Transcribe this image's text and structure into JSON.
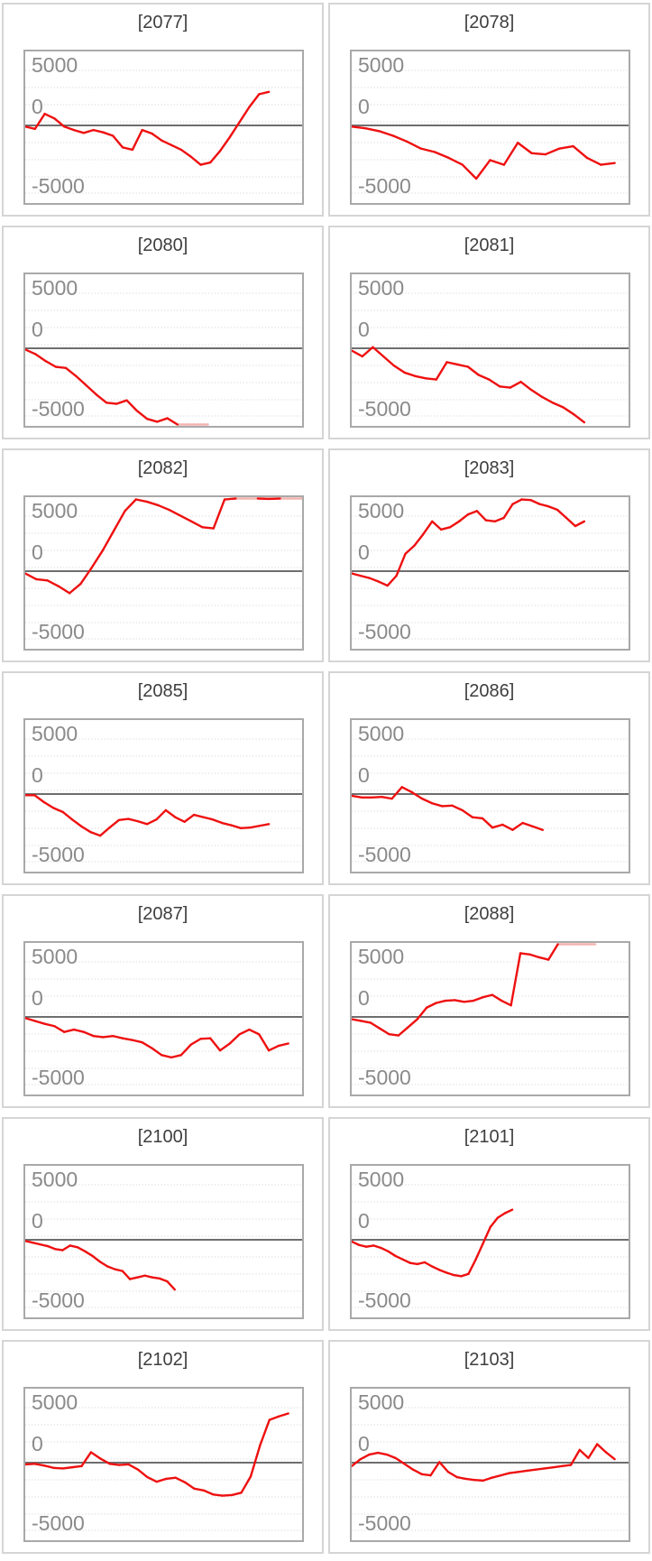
{
  "axis": {
    "tick_labels": [
      "5000",
      "0",
      "-5000"
    ],
    "tick_values": [
      5000,
      0,
      -5000
    ],
    "ylim": [
      -6536,
      6396
    ],
    "gridline_step": 2500,
    "x_axis_labels": "none",
    "legend": "none",
    "grid": true
  },
  "colors": {
    "line": "#ee1010",
    "line_clipped": "#f3b4b1",
    "zero_line": "#6e6e6e",
    "gridline": "#dadada",
    "tick_label": "#8a8a8a",
    "title": "#3e3e3e",
    "panel_border": "#d5d5d5",
    "plot_border": "#a9a9a9",
    "background": "#ffffff"
  },
  "chart_data": [
    {
      "type": "line",
      "title": "[2077]",
      "end_fraction": 0.88,
      "values": [
        -100,
        -300,
        1000,
        600,
        -100,
        -400,
        -650,
        -400,
        -600,
        -900,
        -1900,
        -2100,
        -400,
        -700,
        -1300,
        -1700,
        -2100,
        -2700,
        -3400,
        -3200,
        -2200,
        -1000,
        300,
        1600,
        2700,
        2900
      ]
    },
    {
      "type": "line",
      "title": "[2078]",
      "end_fraction": 0.95,
      "values": [
        -100,
        -250,
        -500,
        -900,
        -1400,
        -2000,
        -2300,
        -2800,
        -3400,
        -4600,
        -3000,
        -3400,
        -1500,
        -2400,
        -2500,
        -2000,
        -1800,
        -2800,
        -3400,
        -3250
      ]
    },
    {
      "type": "line",
      "title": "[2080]",
      "end_fraction": 0.66,
      "values": [
        -100,
        -500,
        -1100,
        -1600,
        -1700,
        -2400,
        -3200,
        -4000,
        -4700,
        -4800,
        -4500,
        -5400,
        -6100,
        -6350,
        -6050,
        -6700,
        -6900,
        -6900,
        -6900
      ]
    },
    {
      "type": "line",
      "title": "[2081]",
      "end_fraction": 0.84,
      "values": [
        -200,
        -700,
        100,
        -700,
        -1500,
        -2100,
        -2400,
        -2600,
        -2700,
        -1200,
        -1400,
        -1600,
        -2300,
        -2700,
        -3300,
        -3400,
        -2900,
        -3600,
        -4200,
        -4700,
        -5100,
        -5700,
        -6400
      ]
    },
    {
      "type": "line",
      "title": "[2082]",
      "end_fraction": 1.0,
      "values": [
        -200,
        -700,
        -800,
        -1300,
        -1900,
        -1100,
        300,
        1800,
        3500,
        5200,
        6200,
        6000,
        5700,
        5300,
        4800,
        4300,
        3800,
        3700,
        6200,
        6900,
        6900,
        6900,
        6250,
        6900,
        6900,
        6900
      ]
    },
    {
      "type": "line",
      "title": "[2083]",
      "end_fraction": 0.84,
      "values": [
        -200,
        -400,
        -600,
        -900,
        -1250,
        -400,
        1500,
        2200,
        3200,
        4300,
        3600,
        3800,
        4300,
        4900,
        5200,
        4400,
        4300,
        4600,
        5800,
        6200,
        6150,
        5800,
        5600,
        5300,
        4600,
        3900,
        4300
      ]
    },
    {
      "type": "line",
      "title": "[2085]",
      "end_fraction": 0.88,
      "values": [
        -100,
        -100,
        -700,
        -1200,
        -1550,
        -2200,
        -2800,
        -3300,
        -3600,
        -2900,
        -2250,
        -2150,
        -2350,
        -2600,
        -2200,
        -1400,
        -2000,
        -2400,
        -1800,
        -2000,
        -2200,
        -2500,
        -2700,
        -2950,
        -2900,
        -2750,
        -2600
      ]
    },
    {
      "type": "line",
      "title": "[2086]",
      "end_fraction": 0.69,
      "values": [
        -150,
        -300,
        -300,
        -250,
        -400,
        600,
        150,
        -400,
        -800,
        -1050,
        -1000,
        -1400,
        -2000,
        -2100,
        -2900,
        -2650,
        -3100,
        -2500,
        -2800,
        -3100
      ]
    },
    {
      "type": "line",
      "title": "[2087]",
      "end_fraction": 0.95,
      "values": [
        -100,
        -350,
        -600,
        -800,
        -1300,
        -1100,
        -1300,
        -1650,
        -1750,
        -1650,
        -1850,
        -2000,
        -2200,
        -2700,
        -3300,
        -3500,
        -3300,
        -2400,
        -1900,
        -1850,
        -2900,
        -2300,
        -1500,
        -1100,
        -1500,
        -2900,
        -2500,
        -2300
      ]
    },
    {
      "type": "line",
      "title": "[2088]",
      "end_fraction": 0.88,
      "values": [
        -200,
        -350,
        -500,
        -1000,
        -1500,
        -1600,
        -900,
        -200,
        800,
        1200,
        1400,
        1450,
        1300,
        1400,
        1700,
        1900,
        1400,
        1000,
        5500,
        5400,
        5150,
        4950,
        6900,
        6900,
        6900,
        6900,
        6900
      ]
    },
    {
      "type": "line",
      "title": "[2100]",
      "end_fraction": 0.54,
      "values": [
        -100,
        -250,
        -400,
        -550,
        -800,
        -900,
        -500,
        -650,
        -1000,
        -1400,
        -1900,
        -2300,
        -2550,
        -2700,
        -3400,
        -3250,
        -3100,
        -3250,
        -3350,
        -3600,
        -4300
      ]
    },
    {
      "type": "line",
      "title": "[2101]",
      "end_fraction": 0.58,
      "values": [
        -150,
        -450,
        -600,
        -500,
        -700,
        -1000,
        -1400,
        -1700,
        -2000,
        -2100,
        -1950,
        -2300,
        -2600,
        -2850,
        -3050,
        -3150,
        -2950,
        -1700,
        -300,
        1100,
        1900,
        2300,
        2600
      ]
    },
    {
      "type": "line",
      "title": "[2102]",
      "end_fraction": 0.95,
      "values": [
        -150,
        -100,
        -250,
        -450,
        -500,
        -400,
        -300,
        900,
        350,
        -100,
        -200,
        -150,
        -600,
        -1250,
        -1650,
        -1400,
        -1300,
        -1700,
        -2250,
        -2400,
        -2750,
        -2850,
        -2800,
        -2600,
        -1200,
        1500,
        3700,
        4000,
        4250
      ]
    },
    {
      "type": "line",
      "title": "[2103]",
      "end_fraction": 0.95,
      "values": [
        -300,
        300,
        700,
        850,
        700,
        400,
        -100,
        -600,
        -1000,
        -1100,
        50,
        -800,
        -1250,
        -1400,
        -1500,
        -1550,
        -1300,
        -1100,
        -900,
        -800,
        -700,
        -600,
        -500,
        -400,
        -300,
        -200,
        1100,
        400,
        1600,
        900,
        300
      ]
    }
  ]
}
